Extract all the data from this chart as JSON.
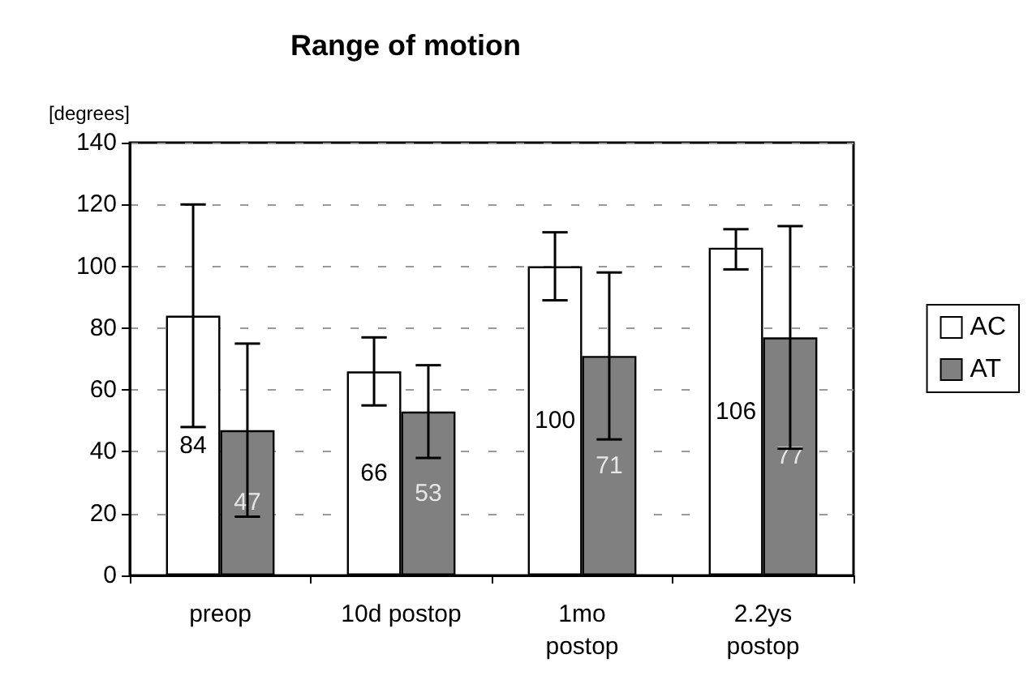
{
  "chart_data": {
    "type": "bar",
    "title": "Range of motion",
    "ylabel": "[degrees]",
    "categories": [
      "preop",
      "10d postop",
      "1mo\npostop",
      "2.2ys\npostop"
    ],
    "series": [
      {
        "name": "AC",
        "color": "#ffffff",
        "values": [
          84,
          66,
          100,
          106
        ],
        "errors": [
          [
            48,
            120
          ],
          [
            55,
            77
          ],
          [
            89,
            111
          ],
          [
            99,
            112
          ]
        ]
      },
      {
        "name": "AT",
        "color": "#808080",
        "values": [
          47,
          53,
          71,
          77
        ],
        "errors": [
          [
            19,
            75
          ],
          [
            38,
            68
          ],
          [
            44,
            98
          ],
          [
            41,
            113
          ]
        ]
      }
    ],
    "ylim": [
      0,
      140
    ],
    "yticks": [
      0,
      20,
      40,
      60,
      80,
      100,
      120,
      140
    ],
    "grid": "y",
    "legend": "right",
    "data_labels": true
  }
}
